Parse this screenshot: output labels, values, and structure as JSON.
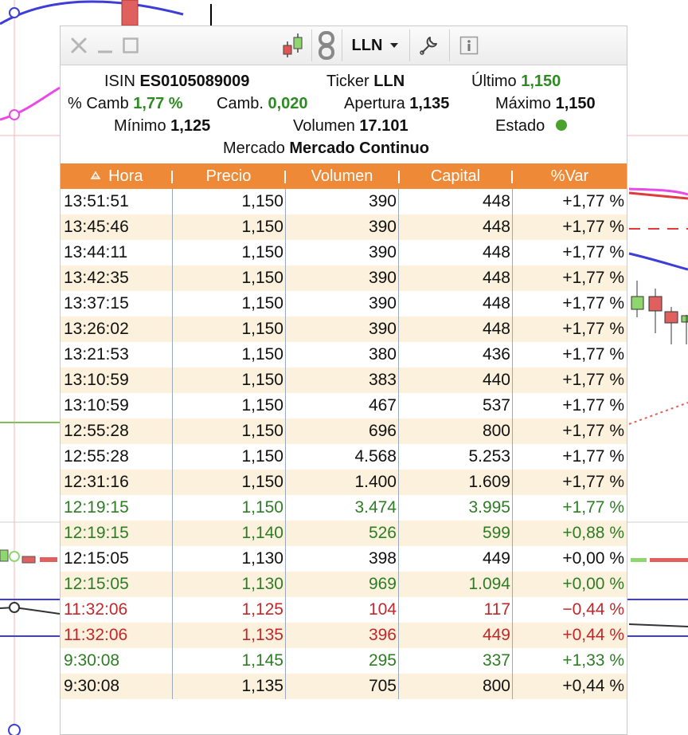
{
  "toolbar": {
    "icons": [
      "close-icon",
      "minimize-icon",
      "maximize-icon",
      "candlestick-chart-icon",
      "chain-link-icon",
      "chevron-down-icon",
      "wrench-icon",
      "info-icon"
    ],
    "ticker_selector": "LLN"
  },
  "info": {
    "isin_label": "ISIN",
    "isin_value": "ES0105089009",
    "ticker_label": "Ticker",
    "ticker_value": "LLN",
    "ultimo_label": "Último",
    "ultimo_value": "1,150",
    "pct_camb_label": "% Camb",
    "pct_camb_value": "1,77 %",
    "camb_label": "Camb.",
    "camb_value": "0,020",
    "apertura_label": "Apertura",
    "apertura_value": "1,135",
    "maximo_label": "Máximo",
    "maximo_value": "1,150",
    "minimo_label": "Mínimo",
    "minimo_value": "1,125",
    "volumen_label": "Volumen",
    "volumen_value": "17.101",
    "estado_label": "Estado",
    "mercado_label": "Mercado",
    "mercado_value": "Mercado Continuo"
  },
  "table": {
    "sort_icon": "sort-up-triangle-icon",
    "headers": [
      "Hora",
      "Precio",
      "Volumen",
      "Capital",
      "%Var"
    ],
    "rows": [
      {
        "hora": "13:51:51",
        "precio": "1,150",
        "volumen": "390",
        "capital": "448",
        "var": "+1,77 %",
        "tone": "neutral"
      },
      {
        "hora": "13:45:46",
        "precio": "1,150",
        "volumen": "390",
        "capital": "448",
        "var": "+1,77 %",
        "tone": "neutral"
      },
      {
        "hora": "13:44:11",
        "precio": "1,150",
        "volumen": "390",
        "capital": "448",
        "var": "+1,77 %",
        "tone": "neutral"
      },
      {
        "hora": "13:42:35",
        "precio": "1,150",
        "volumen": "390",
        "capital": "448",
        "var": "+1,77 %",
        "tone": "neutral"
      },
      {
        "hora": "13:37:15",
        "precio": "1,150",
        "volumen": "390",
        "capital": "448",
        "var": "+1,77 %",
        "tone": "neutral"
      },
      {
        "hora": "13:26:02",
        "precio": "1,150",
        "volumen": "390",
        "capital": "448",
        "var": "+1,77 %",
        "tone": "neutral"
      },
      {
        "hora": "13:21:53",
        "precio": "1,150",
        "volumen": "380",
        "capital": "436",
        "var": "+1,77 %",
        "tone": "neutral"
      },
      {
        "hora": "13:10:59",
        "precio": "1,150",
        "volumen": "383",
        "capital": "440",
        "var": "+1,77 %",
        "tone": "neutral"
      },
      {
        "hora": "13:10:59",
        "precio": "1,150",
        "volumen": "467",
        "capital": "537",
        "var": "+1,77 %",
        "tone": "neutral"
      },
      {
        "hora": "12:55:28",
        "precio": "1,150",
        "volumen": "696",
        "capital": "800",
        "var": "+1,77 %",
        "tone": "neutral"
      },
      {
        "hora": "12:55:28",
        "precio": "1,150",
        "volumen": "4.568",
        "capital": "5.253",
        "var": "+1,77 %",
        "tone": "neutral"
      },
      {
        "hora": "12:31:16",
        "precio": "1,150",
        "volumen": "1.400",
        "capital": "1.609",
        "var": "+1,77 %",
        "tone": "neutral"
      },
      {
        "hora": "12:19:15",
        "precio": "1,150",
        "volumen": "3.474",
        "capital": "3.995",
        "var": "+1,77 %",
        "tone": "up"
      },
      {
        "hora": "12:19:15",
        "precio": "1,140",
        "volumen": "526",
        "capital": "599",
        "var": "+0,88 %",
        "tone": "up"
      },
      {
        "hora": "12:15:05",
        "precio": "1,130",
        "volumen": "398",
        "capital": "449",
        "var": "+0,00 %",
        "tone": "neutral"
      },
      {
        "hora": "12:15:05",
        "precio": "1,130",
        "volumen": "969",
        "capital": "1.094",
        "var": "+0,00 %",
        "tone": "up"
      },
      {
        "hora": "11:32:06",
        "precio": "1,125",
        "volumen": "104",
        "capital": "117",
        "var": "−0,44 %",
        "tone": "down"
      },
      {
        "hora": "11:32:06",
        "precio": "1,135",
        "volumen": "396",
        "capital": "449",
        "var": "+0,44 %",
        "tone": "down"
      },
      {
        "hora": "9:30:08",
        "precio": "1,145",
        "volumen": "295",
        "capital": "337",
        "var": "+1,33 %",
        "tone": "up"
      },
      {
        "hora": "9:30:08",
        "precio": "1,135",
        "volumen": "705",
        "capital": "800",
        "var": "+0,44 %",
        "tone": "neutral"
      }
    ]
  },
  "colors": {
    "header_bg": "#ee8a37",
    "row_alt_bg": "#fbf1dd",
    "price_up": "#2e7d24",
    "price_down": "#c0282c",
    "status_dot": "#4aa12c"
  }
}
